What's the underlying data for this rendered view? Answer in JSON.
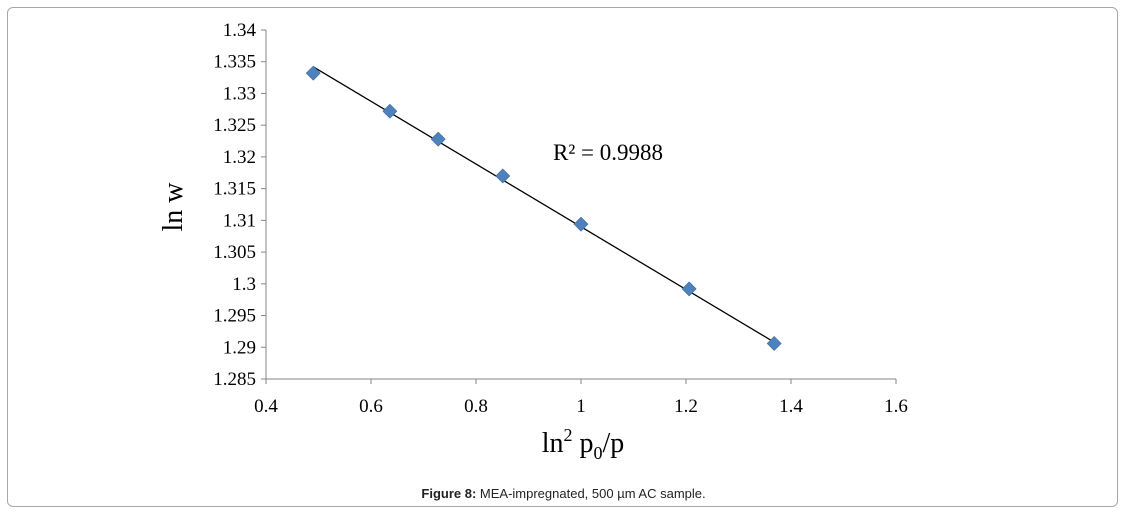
{
  "chart_data": {
    "type": "scatter",
    "xlabel": {
      "base": "ln",
      "sup": "2",
      "mid": " p",
      "sub": "0",
      "tail": "/p"
    },
    "ylabel": "ln w",
    "xlim": [
      0.4,
      1.6
    ],
    "ylim": [
      1.285,
      1.34
    ],
    "x_ticks": [
      "0.4",
      "0.6",
      "0.8",
      "1",
      "1.2",
      "1.4",
      "1.6"
    ],
    "y_ticks": [
      "1.285",
      "1.29",
      "1.295",
      "1.3",
      "1.305",
      "1.31",
      "1.315",
      "1.32",
      "1.325",
      "1.33",
      "1.335",
      "1.34"
    ],
    "grid": false,
    "marker": "diamond",
    "marker_color": "#4f81bd",
    "trendline_color": "#000000",
    "points": [
      {
        "x": 0.49,
        "y": 1.3332
      },
      {
        "x": 0.636,
        "y": 1.3272
      },
      {
        "x": 0.728,
        "y": 1.3228
      },
      {
        "x": 0.851,
        "y": 1.317
      },
      {
        "x": 1.0,
        "y": 1.3094
      },
      {
        "x": 1.206,
        "y": 1.2992
      },
      {
        "x": 1.368,
        "y": 1.2906
      }
    ],
    "trendline": {
      "x_start": 0.49,
      "y_start": 1.3342,
      "x_end": 1.368,
      "y_end": 1.2908
    },
    "annotation": "R² = 0.9988"
  },
  "caption": {
    "label": "Figure 8:",
    "text": " MEA-impregnated, 500 µm AC sample."
  }
}
